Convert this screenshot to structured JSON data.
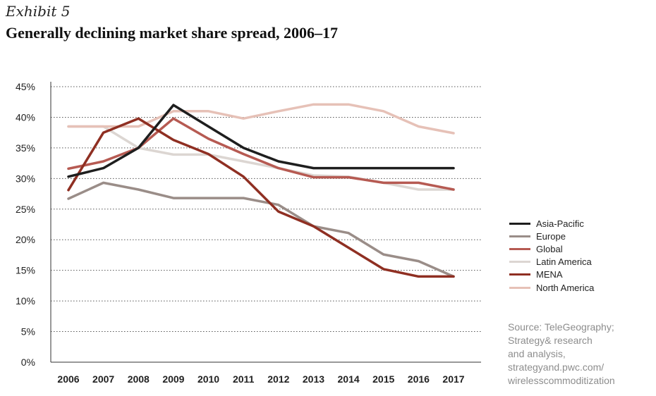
{
  "header": {
    "exhibit": "Exhibit 5",
    "title": "Generally declining market share spread, 2006–17"
  },
  "source": {
    "lines": [
      "Source: TeleGeography;",
      "Strategy& research",
      "and analysis,",
      "strategyand.pwc.com/",
      "wirelesscommoditization"
    ]
  },
  "chart_data": {
    "type": "line",
    "title": "Generally declining market share spread, 2006–17",
    "xlabel": "",
    "ylabel": "",
    "x": [
      "2006",
      "2007",
      "2008",
      "2009",
      "2010",
      "2011",
      "2012",
      "2013",
      "2014",
      "2015",
      "2016",
      "2017"
    ],
    "ylim": [
      0,
      45
    ],
    "yticks": [
      "0%",
      "5%",
      "10%",
      "15%",
      "20%",
      "25%",
      "30%",
      "35%",
      "40%",
      "45%"
    ],
    "grid": "horizontal dotted",
    "legend_position": "right",
    "series": [
      {
        "name": "Asia-Pacific",
        "color": "#1e1e1e",
        "values": [
          30.3,
          31.7,
          35.0,
          42.0,
          38.5,
          35.0,
          32.8,
          31.7,
          31.7,
          31.7,
          31.7,
          31.7
        ]
      },
      {
        "name": "Europe",
        "color": "#9a8d88",
        "values": [
          26.7,
          29.3,
          28.2,
          26.8,
          26.8,
          26.8,
          25.7,
          22.2,
          21.1,
          17.6,
          16.5,
          14.0
        ]
      },
      {
        "name": "Global",
        "color": "#b65a52",
        "values": [
          31.6,
          32.8,
          35.0,
          39.8,
          36.5,
          34.0,
          31.7,
          30.2,
          30.2,
          29.3,
          29.3,
          28.2
        ]
      },
      {
        "name": "Latin America",
        "color": "#dcd6d2",
        "values": [
          38.5,
          38.5,
          35.0,
          33.9,
          33.9,
          32.8,
          31.7,
          30.5,
          30.3,
          29.3,
          28.2,
          28.2
        ]
      },
      {
        "name": "MENA",
        "color": "#8f2f22",
        "values": [
          28.1,
          37.5,
          39.8,
          36.3,
          34.0,
          30.3,
          24.6,
          22.2,
          18.7,
          15.2,
          14.0,
          14.0
        ]
      },
      {
        "name": "North America",
        "color": "#e6c1b7",
        "values": [
          38.5,
          38.5,
          38.5,
          41.0,
          41.0,
          39.8,
          41.0,
          42.1,
          42.1,
          41.0,
          38.5,
          37.4
        ]
      }
    ]
  }
}
